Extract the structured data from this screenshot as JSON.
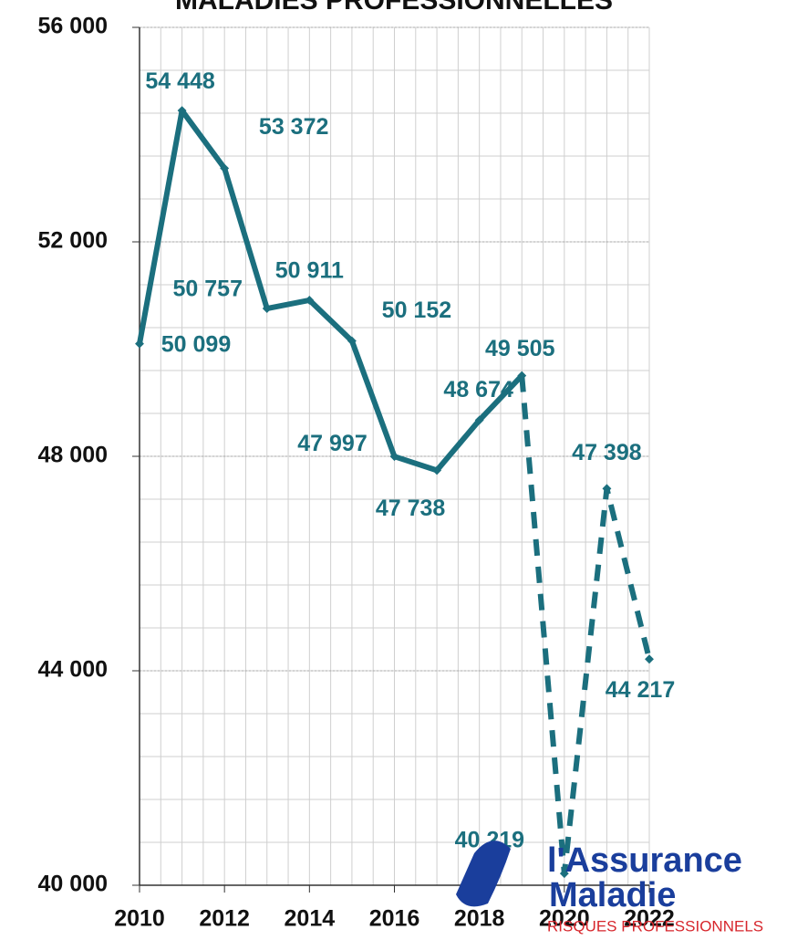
{
  "chart_data": {
    "type": "line",
    "title": "MALADIES PROFESSIONNELLES",
    "x": [
      2010,
      2011,
      2012,
      2013,
      2014,
      2015,
      2016,
      2017,
      2018,
      2019,
      2020,
      2021,
      2022
    ],
    "series": [
      {
        "name": "Maladies professionnelles",
        "color": "#1b6f7e",
        "values": [
          50099,
          54448,
          53372,
          50757,
          50911,
          50152,
          47997,
          47738,
          48674,
          49505,
          40219,
          47398,
          44217
        ],
        "value_labels": [
          "50 099",
          "54 448",
          "53 372",
          "50 757",
          "50 911",
          "50 152",
          "47 997",
          "47 738",
          "48 674",
          "49 505",
          "40 219",
          "47 398",
          "44 217"
        ]
      }
    ],
    "dashed_after_x": 2019,
    "xlim": [
      2010,
      2022
    ],
    "xticks": [
      2010,
      2012,
      2014,
      2016,
      2018,
      2020,
      2022
    ],
    "ylim": [
      40000,
      56000
    ],
    "yticks": [
      {
        "value": 40000,
        "label": "40 000"
      },
      {
        "value": 44000,
        "label": "44 000"
      },
      {
        "value": 48000,
        "label": "48 000"
      },
      {
        "value": 52000,
        "label": "52 000"
      },
      {
        "value": 56000,
        "label": "56 000"
      }
    ],
    "grid": true,
    "logo": {
      "line1": "l'Assurance",
      "line2": "Maladie",
      "line3": "RISQUES PROFESSIONNELS"
    }
  }
}
